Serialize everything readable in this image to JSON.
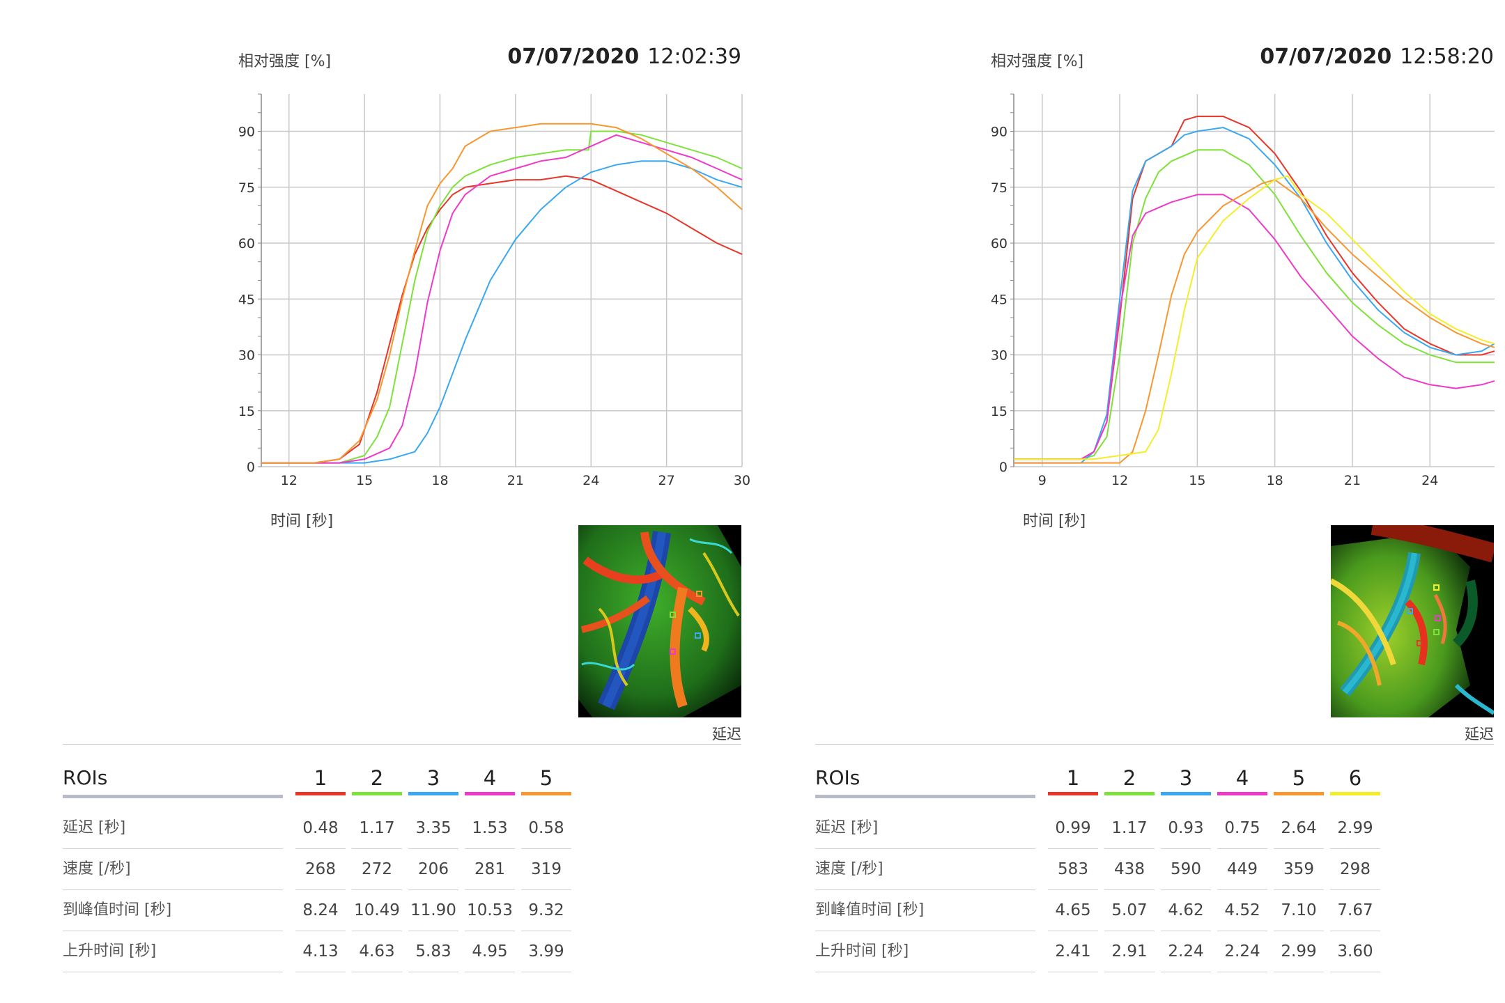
{
  "colors": {
    "roi1": "#e8352a",
    "roi2": "#7ee23a",
    "roi3": "#3aa8f0",
    "roi4": "#ee3ac8",
    "roi5": "#f7972f",
    "roi6": "#f4ee2a"
  },
  "left": {
    "y_axis_label": "相对强度 [%]",
    "date": "07/07/2020",
    "time": "12:02:39",
    "x_axis_label": "时间 [秒]",
    "image_label": "延迟",
    "table": {
      "header": "ROIs",
      "roi_numbers": [
        "1",
        "2",
        "3",
        "4",
        "5"
      ],
      "rows": [
        {
          "label": "延迟 [秒]",
          "values": [
            "0.48",
            "1.17",
            "3.35",
            "1.53",
            "0.58"
          ]
        },
        {
          "label": "速度 [/秒]",
          "values": [
            "268",
            "272",
            "206",
            "281",
            "319"
          ]
        },
        {
          "label": "到峰值时间 [秒]",
          "values": [
            "8.24",
            "10.49",
            "11.90",
            "10.53",
            "9.32"
          ]
        },
        {
          "label": "上升时间 [秒]",
          "values": [
            "4.13",
            "4.63",
            "5.83",
            "4.95",
            "3.99"
          ]
        }
      ]
    }
  },
  "right": {
    "y_axis_label": "相对强度 [%]",
    "date": "07/07/2020",
    "time": "12:58:20",
    "x_axis_label": "时间 [秒]",
    "image_label": "延迟",
    "table": {
      "header": "ROIs",
      "roi_numbers": [
        "1",
        "2",
        "3",
        "4",
        "5",
        "6"
      ],
      "rows": [
        {
          "label": "延迟 [秒]",
          "values": [
            "0.99",
            "1.17",
            "0.93",
            "0.75",
            "2.64",
            "2.99"
          ]
        },
        {
          "label": "速度 [/秒]",
          "values": [
            "583",
            "438",
            "590",
            "449",
            "359",
            "298"
          ]
        },
        {
          "label": "到峰值时间 [秒]",
          "values": [
            "4.65",
            "5.07",
            "4.62",
            "4.52",
            "7.10",
            "7.67"
          ]
        },
        {
          "label": "上升时间 [秒]",
          "values": [
            "2.41",
            "2.91",
            "2.24",
            "2.24",
            "2.99",
            "3.60"
          ]
        }
      ]
    }
  },
  "chart_data": [
    {
      "type": "line",
      "xlabel": "时间 [秒]",
      "ylabel": "相对强度 [%]",
      "xlim": [
        10.9,
        30
      ],
      "ylim": [
        0,
        100
      ],
      "xticks": [
        12,
        15,
        18,
        21,
        24,
        27,
        30
      ],
      "yticks": [
        0,
        15,
        30,
        45,
        60,
        75,
        90
      ],
      "grid": true,
      "series": [
        {
          "name": "1",
          "color": "#e8352a",
          "points": [
            [
              10.9,
              1
            ],
            [
              13,
              1
            ],
            [
              14,
              2
            ],
            [
              14.8,
              6
            ],
            [
              15.5,
              20
            ],
            [
              16,
              33
            ],
            [
              16.5,
              46
            ],
            [
              17,
              57
            ],
            [
              17.5,
              64
            ],
            [
              18,
              69
            ],
            [
              18.5,
              73
            ],
            [
              19,
              75
            ],
            [
              20,
              76
            ],
            [
              21,
              77
            ],
            [
              22,
              77
            ],
            [
              23,
              78
            ],
            [
              24,
              77
            ],
            [
              25,
              74
            ],
            [
              26,
              71
            ],
            [
              27,
              68
            ],
            [
              28,
              64
            ],
            [
              29,
              60
            ],
            [
              30,
              57
            ]
          ]
        },
        {
          "name": "2",
          "color": "#7ee23a",
          "points": [
            [
              10.9,
              1
            ],
            [
              14,
              1
            ],
            [
              15,
              3
            ],
            [
              15.5,
              8
            ],
            [
              16,
              16
            ],
            [
              16.5,
              33
            ],
            [
              17,
              50
            ],
            [
              17.5,
              63
            ],
            [
              18,
              70
            ],
            [
              18.5,
              75
            ],
            [
              19,
              78
            ],
            [
              20,
              81
            ],
            [
              21,
              83
            ],
            [
              22,
              84
            ],
            [
              23,
              85
            ],
            [
              23.9,
              85
            ],
            [
              24,
              90
            ],
            [
              25,
              90
            ],
            [
              26,
              89
            ],
            [
              27,
              87
            ],
            [
              28,
              85
            ],
            [
              29,
              83
            ],
            [
              30,
              80
            ]
          ]
        },
        {
          "name": "3",
          "color": "#3aa8f0",
          "points": [
            [
              10.9,
              1
            ],
            [
              15,
              1
            ],
            [
              16,
              2
            ],
            [
              17,
              4
            ],
            [
              17.5,
              9
            ],
            [
              18,
              16
            ],
            [
              18.5,
              25
            ],
            [
              19,
              34
            ],
            [
              19.5,
              42
            ],
            [
              20,
              50
            ],
            [
              21,
              61
            ],
            [
              22,
              69
            ],
            [
              23,
              75
            ],
            [
              24,
              79
            ],
            [
              25,
              81
            ],
            [
              26,
              82
            ],
            [
              27,
              82
            ],
            [
              28,
              80
            ],
            [
              29,
              77
            ],
            [
              30,
              75
            ]
          ]
        },
        {
          "name": "4",
          "color": "#ee3ac8",
          "points": [
            [
              10.9,
              1
            ],
            [
              14,
              1
            ],
            [
              15,
              2
            ],
            [
              16,
              5
            ],
            [
              16.5,
              11
            ],
            [
              17,
              25
            ],
            [
              17.5,
              44
            ],
            [
              18,
              58
            ],
            [
              18.5,
              68
            ],
            [
              19,
              73
            ],
            [
              20,
              78
            ],
            [
              21,
              80
            ],
            [
              22,
              82
            ],
            [
              23,
              83
            ],
            [
              24,
              86
            ],
            [
              25,
              89
            ],
            [
              26,
              87
            ],
            [
              27,
              85
            ],
            [
              28,
              83
            ],
            [
              29,
              80
            ],
            [
              30,
              77
            ]
          ]
        },
        {
          "name": "5",
          "color": "#f7972f",
          "points": [
            [
              10.9,
              1
            ],
            [
              13,
              1
            ],
            [
              14,
              2
            ],
            [
              14.8,
              7
            ],
            [
              15.5,
              18
            ],
            [
              16,
              30
            ],
            [
              16.5,
              45
            ],
            [
              17,
              58
            ],
            [
              17.5,
              70
            ],
            [
              18,
              76
            ],
            [
              18.5,
              80
            ],
            [
              19,
              86
            ],
            [
              20,
              90
            ],
            [
              21,
              91
            ],
            [
              22,
              92
            ],
            [
              23,
              92
            ],
            [
              24,
              92
            ],
            [
              25,
              91
            ],
            [
              26,
              88
            ],
            [
              27,
              84
            ],
            [
              28,
              80
            ],
            [
              29,
              75
            ],
            [
              30,
              69
            ]
          ]
        }
      ]
    },
    {
      "type": "line",
      "xlabel": "时间 [秒]",
      "ylabel": "相对强度 [%]",
      "xlim": [
        7.9,
        26.5
      ],
      "ylim": [
        0,
        100
      ],
      "xticks": [
        9,
        12,
        15,
        18,
        21,
        24
      ],
      "yticks": [
        0,
        15,
        30,
        45,
        60,
        75,
        90
      ],
      "grid": true,
      "series": [
        {
          "name": "1",
          "color": "#e8352a",
          "points": [
            [
              7.9,
              2
            ],
            [
              10.5,
              2
            ],
            [
              11,
              4
            ],
            [
              11.5,
              12
            ],
            [
              12,
              40
            ],
            [
              12.5,
              72
            ],
            [
              13,
              82
            ],
            [
              13.5,
              84
            ],
            [
              14,
              86
            ],
            [
              14.5,
              93
            ],
            [
              15,
              94
            ],
            [
              16,
              94
            ],
            [
              17,
              91
            ],
            [
              18,
              84
            ],
            [
              19,
              74
            ],
            [
              20,
              62
            ],
            [
              21,
              52
            ],
            [
              22,
              44
            ],
            [
              23,
              37
            ],
            [
              24,
              33
            ],
            [
              25,
              30
            ],
            [
              26,
              30
            ],
            [
              26.5,
              31
            ]
          ]
        },
        {
          "name": "2",
          "color": "#7ee23a",
          "points": [
            [
              7.9,
              2
            ],
            [
              10.5,
              2
            ],
            [
              11,
              3
            ],
            [
              11.5,
              8
            ],
            [
              12,
              30
            ],
            [
              12.5,
              60
            ],
            [
              13,
              72
            ],
            [
              13.5,
              79
            ],
            [
              14,
              82
            ],
            [
              15,
              85
            ],
            [
              16,
              85
            ],
            [
              17,
              81
            ],
            [
              18,
              73
            ],
            [
              19,
              62
            ],
            [
              20,
              52
            ],
            [
              21,
              44
            ],
            [
              22,
              38
            ],
            [
              23,
              33
            ],
            [
              24,
              30
            ],
            [
              25,
              28
            ],
            [
              26,
              28
            ],
            [
              26.5,
              28
            ]
          ]
        },
        {
          "name": "3",
          "color": "#3aa8f0",
          "points": [
            [
              7.9,
              1
            ],
            [
              10.5,
              1
            ],
            [
              11,
              4
            ],
            [
              11.5,
              14
            ],
            [
              12,
              45
            ],
            [
              12.5,
              74
            ],
            [
              13,
              82
            ],
            [
              13.5,
              84
            ],
            [
              14,
              86
            ],
            [
              14.5,
              89
            ],
            [
              15,
              90
            ],
            [
              16,
              91
            ],
            [
              17,
              88
            ],
            [
              18,
              81
            ],
            [
              19,
              72
            ],
            [
              20,
              60
            ],
            [
              21,
              50
            ],
            [
              22,
              42
            ],
            [
              23,
              36
            ],
            [
              24,
              32
            ],
            [
              25,
              30
            ],
            [
              26,
              31
            ],
            [
              26.5,
              33
            ]
          ]
        },
        {
          "name": "4",
          "color": "#ee3ac8",
          "points": [
            [
              7.9,
              2
            ],
            [
              10.5,
              2
            ],
            [
              11,
              4
            ],
            [
              11.5,
              12
            ],
            [
              12,
              42
            ],
            [
              12.5,
              62
            ],
            [
              13,
              68
            ],
            [
              14,
              71
            ],
            [
              15,
              73
            ],
            [
              16,
              73
            ],
            [
              17,
              69
            ],
            [
              18,
              61
            ],
            [
              19,
              51
            ],
            [
              20,
              43
            ],
            [
              21,
              35
            ],
            [
              22,
              29
            ],
            [
              23,
              24
            ],
            [
              24,
              22
            ],
            [
              25,
              21
            ],
            [
              26,
              22
            ],
            [
              26.5,
              23
            ]
          ]
        },
        {
          "name": "5",
          "color": "#f7972f",
          "points": [
            [
              7.9,
              1
            ],
            [
              12,
              1
            ],
            [
              12.5,
              4
            ],
            [
              13,
              15
            ],
            [
              13.5,
              30
            ],
            [
              14,
              46
            ],
            [
              14.5,
              57
            ],
            [
              15,
              63
            ],
            [
              16,
              70
            ],
            [
              17,
              74
            ],
            [
              17.5,
              76
            ],
            [
              18,
              77
            ],
            [
              19,
              72
            ],
            [
              20,
              64
            ],
            [
              21,
              57
            ],
            [
              22,
              51
            ],
            [
              23,
              45
            ],
            [
              24,
              40
            ],
            [
              25,
              36
            ],
            [
              26,
              33
            ],
            [
              26.5,
              32
            ]
          ]
        },
        {
          "name": "6",
          "color": "#f4ee2a",
          "points": [
            [
              7.9,
              2
            ],
            [
              11,
              2
            ],
            [
              12,
              3
            ],
            [
              13,
              4
            ],
            [
              13.5,
              10
            ],
            [
              14,
              25
            ],
            [
              14.5,
              42
            ],
            [
              15,
              56
            ],
            [
              16,
              66
            ],
            [
              17,
              72
            ],
            [
              18,
              77
            ],
            [
              18.5,
              78
            ],
            [
              19,
              73
            ],
            [
              20,
              68
            ],
            [
              21,
              61
            ],
            [
              22,
              54
            ],
            [
              23,
              47
            ],
            [
              24,
              41
            ],
            [
              25,
              37
            ],
            [
              26,
              34
            ],
            [
              26.5,
              33
            ]
          ]
        }
      ]
    }
  ]
}
